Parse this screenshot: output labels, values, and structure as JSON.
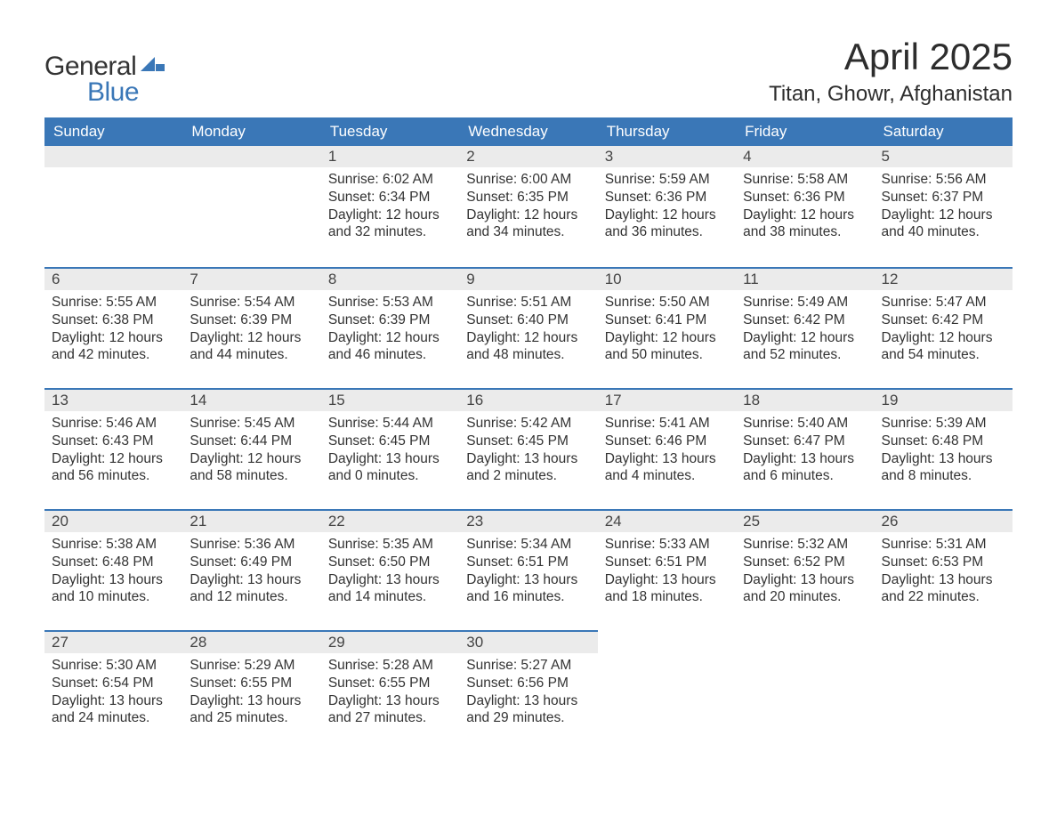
{
  "logo": {
    "text1": "General",
    "text2": "Blue",
    "color_general": "#333333",
    "color_blue": "#3a77b7"
  },
  "title": "April 2025",
  "location": "Titan, Ghowr, Afghanistan",
  "colors": {
    "header_bg": "#3a77b7",
    "header_text": "#ffffff",
    "daynum_bg": "#ebebeb",
    "row_divider": "#3a77b7",
    "body_text": "#333333",
    "background": "#ffffff"
  },
  "typography": {
    "title_fontsize": 42,
    "location_fontsize": 24,
    "th_fontsize": 17,
    "cell_fontsize": 15.5
  },
  "layout": {
    "columns": 7,
    "rows": 5
  },
  "weekdays": [
    "Sunday",
    "Monday",
    "Tuesday",
    "Wednesday",
    "Thursday",
    "Friday",
    "Saturday"
  ],
  "weeks": [
    [
      null,
      null,
      {
        "n": "1",
        "sunrise": "6:02 AM",
        "sunset": "6:34 PM",
        "daylight": "12 hours and 32 minutes."
      },
      {
        "n": "2",
        "sunrise": "6:00 AM",
        "sunset": "6:35 PM",
        "daylight": "12 hours and 34 minutes."
      },
      {
        "n": "3",
        "sunrise": "5:59 AM",
        "sunset": "6:36 PM",
        "daylight": "12 hours and 36 minutes."
      },
      {
        "n": "4",
        "sunrise": "5:58 AM",
        "sunset": "6:36 PM",
        "daylight": "12 hours and 38 minutes."
      },
      {
        "n": "5",
        "sunrise": "5:56 AM",
        "sunset": "6:37 PM",
        "daylight": "12 hours and 40 minutes."
      }
    ],
    [
      {
        "n": "6",
        "sunrise": "5:55 AM",
        "sunset": "6:38 PM",
        "daylight": "12 hours and 42 minutes."
      },
      {
        "n": "7",
        "sunrise": "5:54 AM",
        "sunset": "6:39 PM",
        "daylight": "12 hours and 44 minutes."
      },
      {
        "n": "8",
        "sunrise": "5:53 AM",
        "sunset": "6:39 PM",
        "daylight": "12 hours and 46 minutes."
      },
      {
        "n": "9",
        "sunrise": "5:51 AM",
        "sunset": "6:40 PM",
        "daylight": "12 hours and 48 minutes."
      },
      {
        "n": "10",
        "sunrise": "5:50 AM",
        "sunset": "6:41 PM",
        "daylight": "12 hours and 50 minutes."
      },
      {
        "n": "11",
        "sunrise": "5:49 AM",
        "sunset": "6:42 PM",
        "daylight": "12 hours and 52 minutes."
      },
      {
        "n": "12",
        "sunrise": "5:47 AM",
        "sunset": "6:42 PM",
        "daylight": "12 hours and 54 minutes."
      }
    ],
    [
      {
        "n": "13",
        "sunrise": "5:46 AM",
        "sunset": "6:43 PM",
        "daylight": "12 hours and 56 minutes."
      },
      {
        "n": "14",
        "sunrise": "5:45 AM",
        "sunset": "6:44 PM",
        "daylight": "12 hours and 58 minutes."
      },
      {
        "n": "15",
        "sunrise": "5:44 AM",
        "sunset": "6:45 PM",
        "daylight": "13 hours and 0 minutes."
      },
      {
        "n": "16",
        "sunrise": "5:42 AM",
        "sunset": "6:45 PM",
        "daylight": "13 hours and 2 minutes."
      },
      {
        "n": "17",
        "sunrise": "5:41 AM",
        "sunset": "6:46 PM",
        "daylight": "13 hours and 4 minutes."
      },
      {
        "n": "18",
        "sunrise": "5:40 AM",
        "sunset": "6:47 PM",
        "daylight": "13 hours and 6 minutes."
      },
      {
        "n": "19",
        "sunrise": "5:39 AM",
        "sunset": "6:48 PM",
        "daylight": "13 hours and 8 minutes."
      }
    ],
    [
      {
        "n": "20",
        "sunrise": "5:38 AM",
        "sunset": "6:48 PM",
        "daylight": "13 hours and 10 minutes."
      },
      {
        "n": "21",
        "sunrise": "5:36 AM",
        "sunset": "6:49 PM",
        "daylight": "13 hours and 12 minutes."
      },
      {
        "n": "22",
        "sunrise": "5:35 AM",
        "sunset": "6:50 PM",
        "daylight": "13 hours and 14 minutes."
      },
      {
        "n": "23",
        "sunrise": "5:34 AM",
        "sunset": "6:51 PM",
        "daylight": "13 hours and 16 minutes."
      },
      {
        "n": "24",
        "sunrise": "5:33 AM",
        "sunset": "6:51 PM",
        "daylight": "13 hours and 18 minutes."
      },
      {
        "n": "25",
        "sunrise": "5:32 AM",
        "sunset": "6:52 PM",
        "daylight": "13 hours and 20 minutes."
      },
      {
        "n": "26",
        "sunrise": "5:31 AM",
        "sunset": "6:53 PM",
        "daylight": "13 hours and 22 minutes."
      }
    ],
    [
      {
        "n": "27",
        "sunrise": "5:30 AM",
        "sunset": "6:54 PM",
        "daylight": "13 hours and 24 minutes."
      },
      {
        "n": "28",
        "sunrise": "5:29 AM",
        "sunset": "6:55 PM",
        "daylight": "13 hours and 25 minutes."
      },
      {
        "n": "29",
        "sunrise": "5:28 AM",
        "sunset": "6:55 PM",
        "daylight": "13 hours and 27 minutes."
      },
      {
        "n": "30",
        "sunrise": "5:27 AM",
        "sunset": "6:56 PM",
        "daylight": "13 hours and 29 minutes."
      },
      null,
      null,
      null
    ]
  ],
  "labels": {
    "sunrise": "Sunrise:",
    "sunset": "Sunset:",
    "daylight": "Daylight:"
  }
}
